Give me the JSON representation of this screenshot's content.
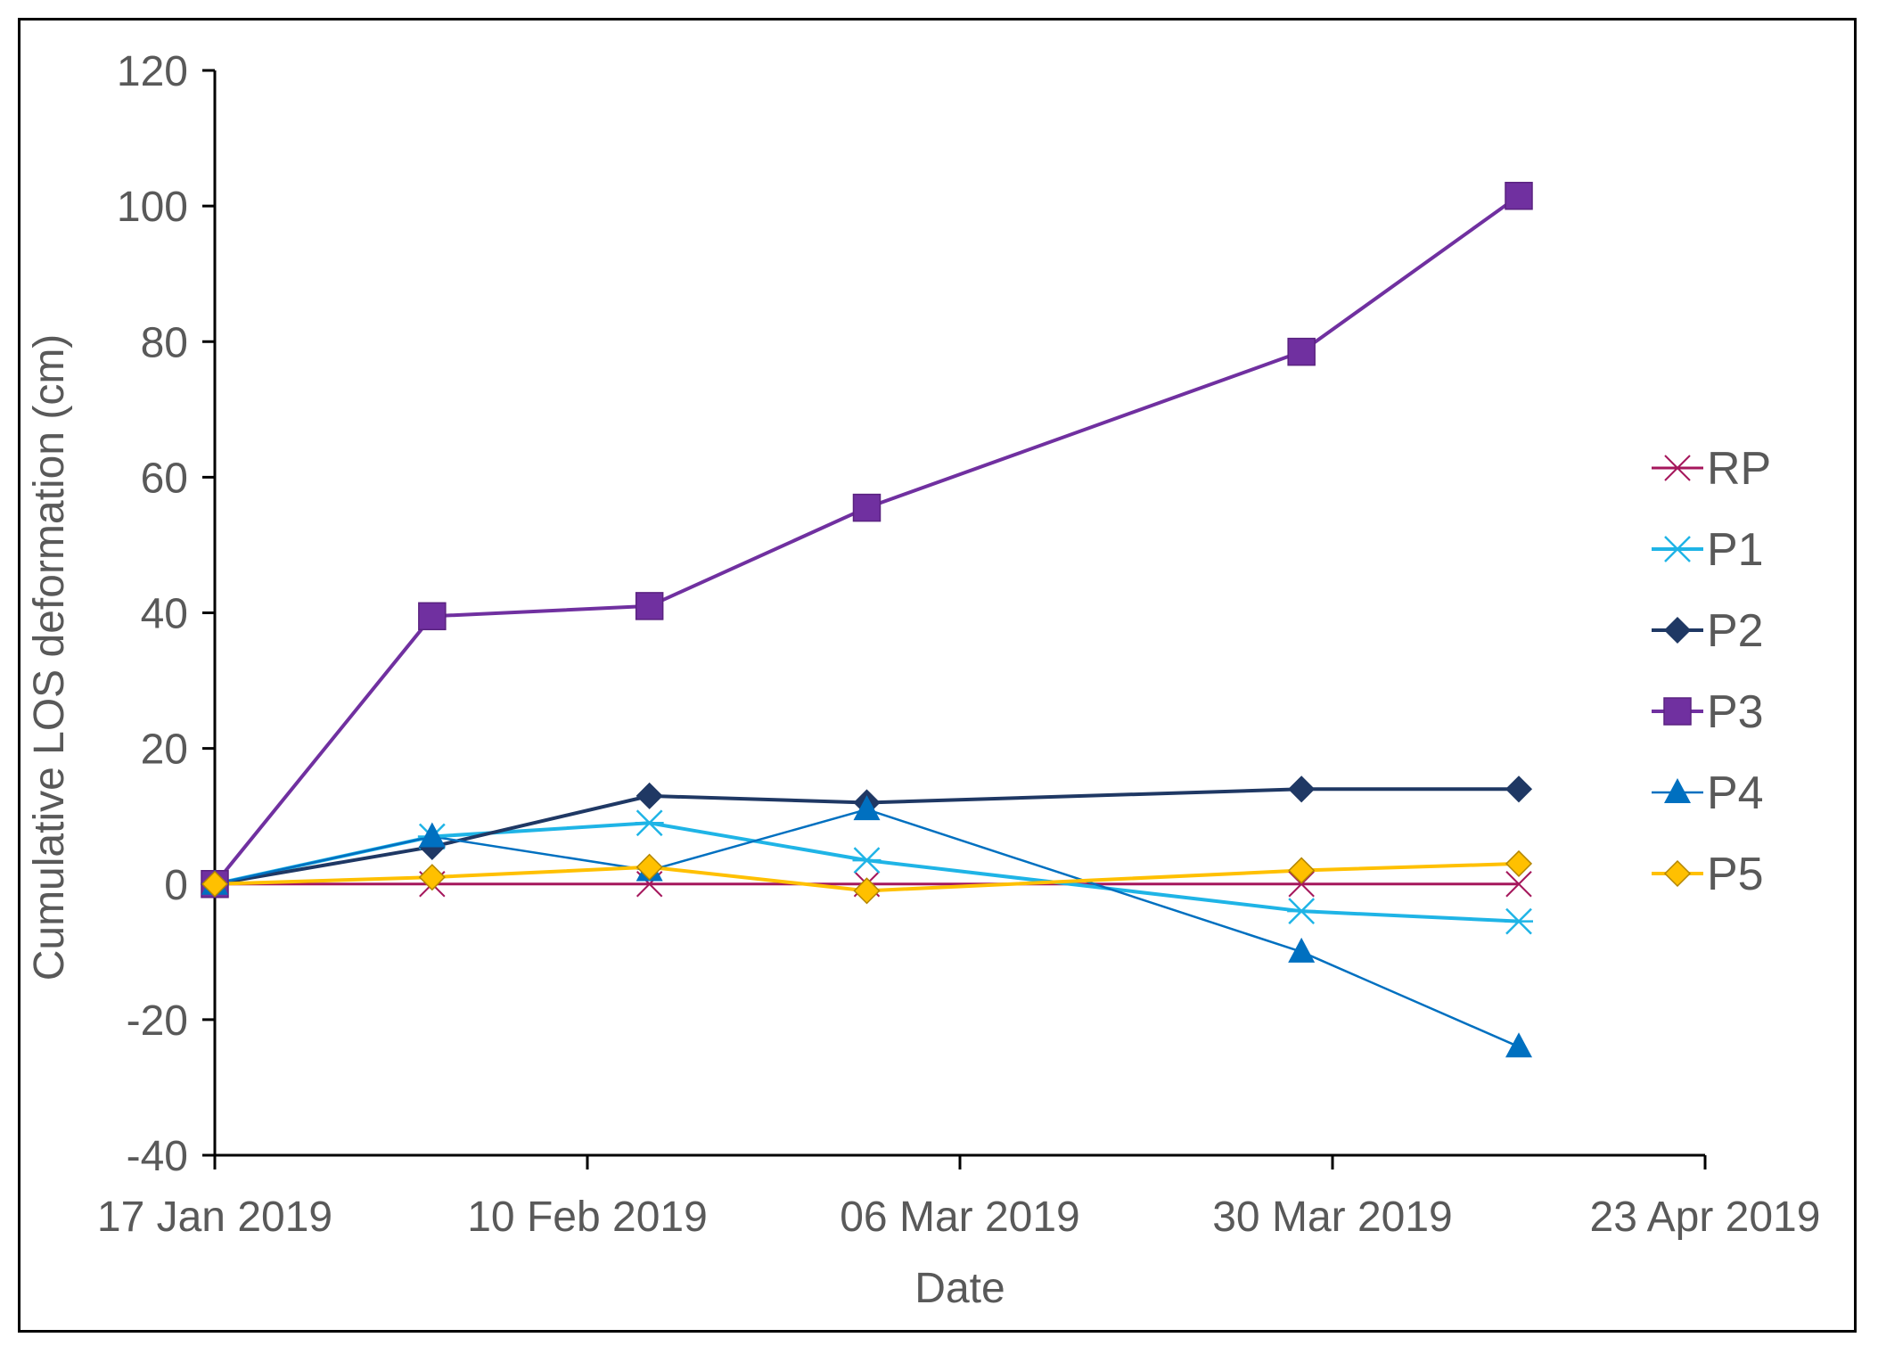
{
  "chart_data": {
    "type": "line",
    "title": "",
    "xlabel": "Date",
    "ylabel": "Cumulative LOS deformation (cm)",
    "ylim": [
      -40,
      120
    ],
    "yticks": [
      "-40",
      "-20",
      "0",
      "20",
      "40",
      "60",
      "80",
      "100",
      "120"
    ],
    "xlim_days": [
      0,
      96
    ],
    "xticks": [
      {
        "label": "17 Jan 2019",
        "day": 0
      },
      {
        "label": "10 Feb 2019",
        "day": 24
      },
      {
        "label": "06 Mar 2019",
        "day": 48
      },
      {
        "label": "30 Mar 2019",
        "day": 72
      },
      {
        "label": "23 Apr 2019",
        "day": 96
      }
    ],
    "x_days": [
      0,
      14,
      28,
      42,
      70,
      84
    ],
    "x_dates": [
      "17 Jan 2019",
      "31 Jan 2019",
      "14 Feb 2019",
      "28 Feb 2019",
      "28 Mar 2019",
      "11 Apr 2019"
    ],
    "series": [
      {
        "name": "RP",
        "color": "#A5175C",
        "marker": "x",
        "line_width": 3,
        "values": [
          0,
          0,
          0,
          0,
          0,
          0
        ]
      },
      {
        "name": "P1",
        "color": "#1FB4E6",
        "marker": "asterisk",
        "line_width": 4,
        "values": [
          0,
          7,
          9,
          3.5,
          -4,
          -5.5
        ]
      },
      {
        "name": "P2",
        "color": "#1F3864",
        "marker": "diamond",
        "line_width": 4,
        "values": [
          0,
          5.5,
          13,
          12,
          14,
          14
        ]
      },
      {
        "name": "P3",
        "color": "#7030A0",
        "marker": "square",
        "line_width": 4,
        "values": [
          0,
          39.5,
          41,
          55.5,
          78.5,
          101.5
        ]
      },
      {
        "name": "P4",
        "color": "#0070C0",
        "marker": "triangle",
        "line_width": 2.5,
        "values": [
          0,
          7,
          2,
          11,
          -10,
          -24
        ]
      },
      {
        "name": "P5",
        "color": "#FFC000",
        "marker": "diamond",
        "line_width": 4,
        "values": [
          0,
          1,
          2.5,
          -1,
          2,
          3
        ]
      }
    ],
    "legend_position": "right"
  }
}
